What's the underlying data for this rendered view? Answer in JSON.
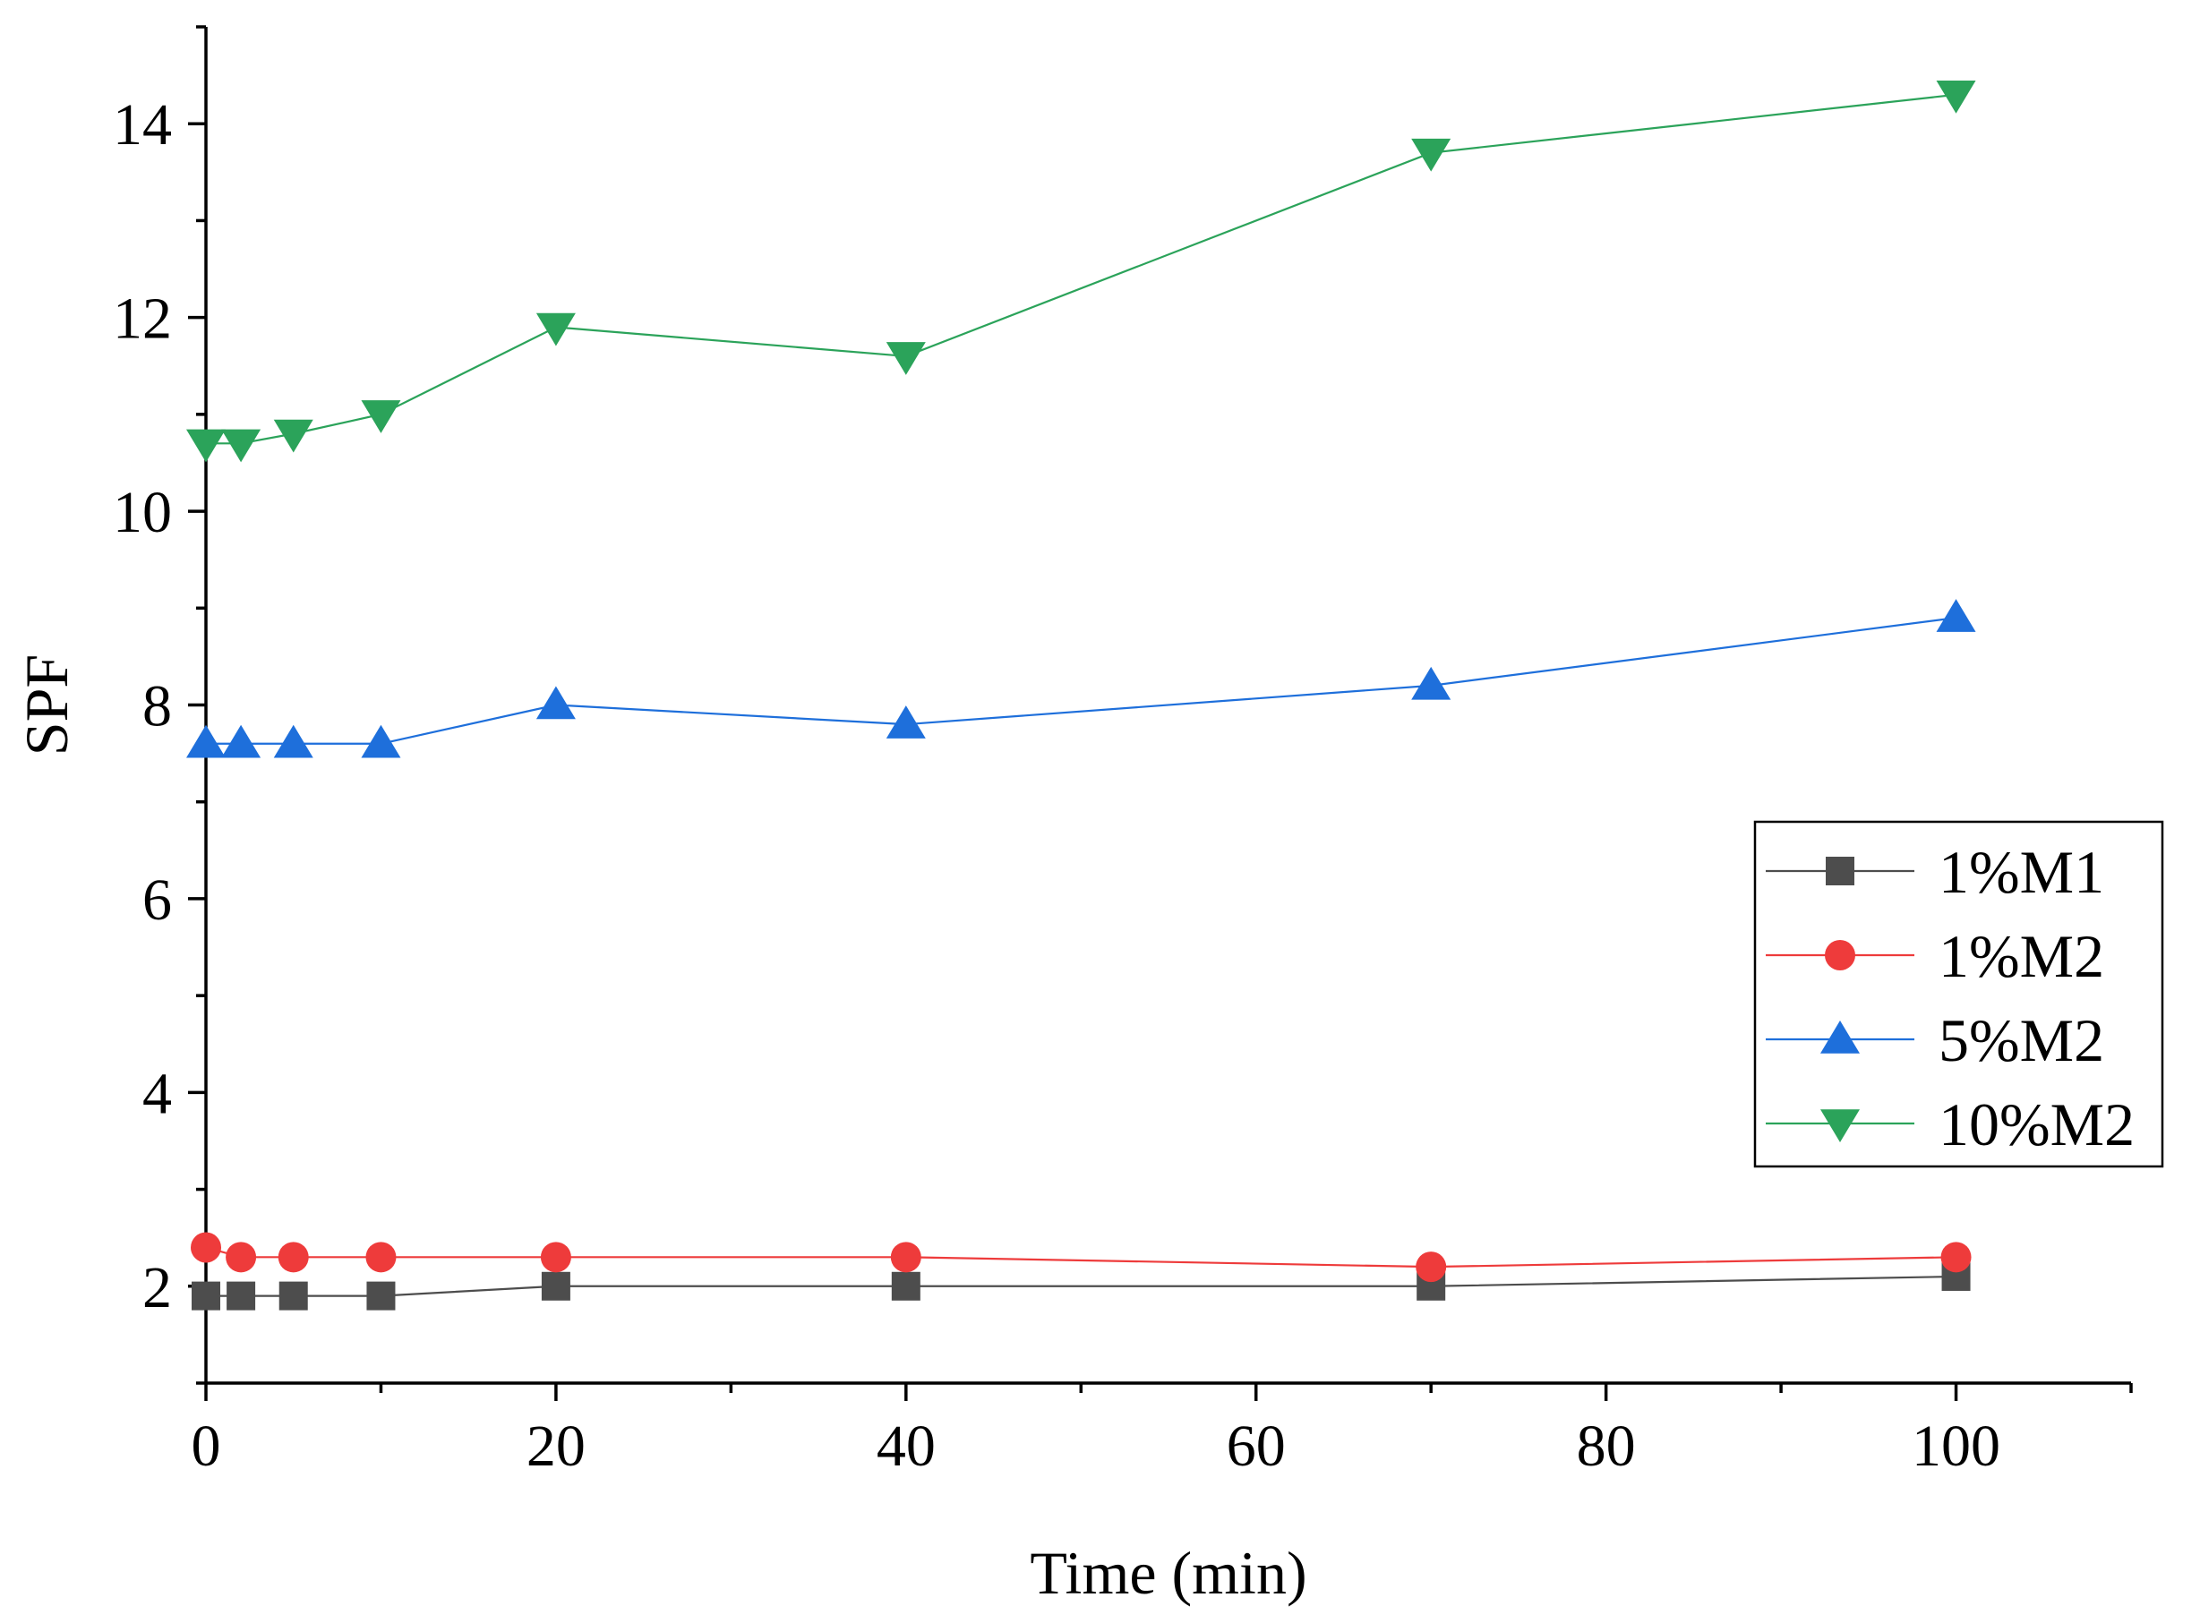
{
  "chart_data": {
    "type": "line",
    "title": "",
    "xlabel": "Time (min)",
    "ylabel": "SPF",
    "xlim": [
      0,
      110
    ],
    "ylim": [
      1,
      15
    ],
    "xticks": [
      0,
      20,
      40,
      60,
      80,
      100
    ],
    "yticks": [
      2,
      4,
      6,
      8,
      10,
      12,
      14
    ],
    "grid": false,
    "legend_position": "right",
    "x": [
      0,
      2,
      5,
      10,
      20,
      40,
      70,
      100
    ],
    "series": [
      {
        "name": "1%M1",
        "marker": "square",
        "color": "#4d4d4d",
        "values": [
          1.9,
          1.9,
          1.9,
          1.9,
          2.0,
          2.0,
          2.0,
          2.1
        ]
      },
      {
        "name": "1%M2",
        "marker": "circle",
        "color": "#ee3b3b",
        "values": [
          2.4,
          2.3,
          2.3,
          2.3,
          2.3,
          2.3,
          2.2,
          2.3
        ]
      },
      {
        "name": "5%M2",
        "marker": "triangle-up",
        "color": "#1e6fdb",
        "values": [
          7.6,
          7.6,
          7.6,
          7.6,
          8.0,
          7.8,
          8.2,
          8.9
        ]
      },
      {
        "name": "10%M2",
        "marker": "triangle-down",
        "color": "#2ba35a",
        "values": [
          10.7,
          10.7,
          10.8,
          11.0,
          11.9,
          11.6,
          13.7,
          14.3
        ]
      }
    ]
  }
}
